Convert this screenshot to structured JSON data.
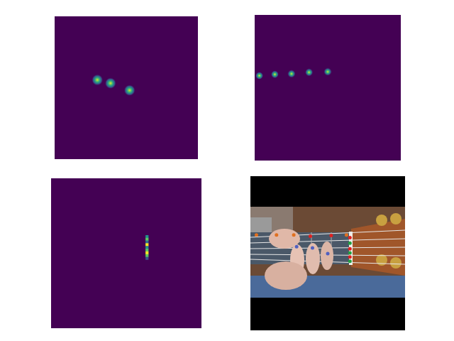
{
  "chart_data": [
    {
      "type": "scatter",
      "x": [
        29.8,
        39.0,
        52.3
      ],
      "values": [
        44.5,
        46.8,
        51.8
      ],
      "marker": "blob",
      "xlim": [
        0,
        100
      ],
      "ylim": [
        100,
        0
      ],
      "grid": false,
      "tick_labels": false
    },
    {
      "type": "scatter",
      "x": [
        3.2,
        13.8,
        25.2,
        37.2,
        50.0
      ],
      "values": [
        41.7,
        40.8,
        40.4,
        39.4,
        39.0
      ],
      "marker": "small_blob",
      "xlim": [
        0,
        100
      ],
      "ylim": [
        100,
        0
      ],
      "grid": false,
      "tick_labels": false
    },
    {
      "type": "scatter",
      "x": [
        63.8,
        63.8,
        63.8,
        63.8,
        63.8,
        63.8,
        63.8,
        63.8,
        63.8
      ],
      "values": [
        38.9,
        40.7,
        42.5,
        44.3,
        46.2,
        48.0,
        49.8,
        51.6,
        53.4
      ],
      "marker": "square",
      "colors": [
        "#21918c",
        "#5ec962",
        "#2c728e",
        "#fde725",
        "#21918c",
        "#5ec962",
        "#fde725",
        "#5ec962",
        "#3b528b"
      ],
      "xlim": [
        0,
        100
      ],
      "ylim": [
        100,
        0
      ],
      "grid": false,
      "tick_labels": false
    },
    {
      "type": "photo_keypoints",
      "x": [
        2.8,
        16.1,
        27.5,
        62.4,
        38.5,
        52.3,
        64.7,
        64.7,
        64.7,
        64.7,
        64.7,
        64.7,
        29.4,
        39.9,
        50.0
      ],
      "values": [
        37.8,
        37.8,
        37.8,
        37.8,
        38.7,
        38.2,
        39.6,
        47.0,
        52.5,
        43.3,
        49.8,
        55.3,
        45.6,
        46.5,
        50.2
      ],
      "marker": "circle",
      "colors": [
        "#e07020",
        "#e07020",
        "#e07020",
        "#e07020",
        "#e02020",
        "#e02020",
        "#e02020",
        "#e02020",
        "#e02020",
        "#20a040",
        "#20a040",
        "#20a040",
        "#5060c0",
        "#5060c0",
        "#5060c0"
      ],
      "xlim": [
        0,
        100
      ],
      "ylim": [
        100,
        0
      ],
      "grid": false,
      "tick_labels": false
    }
  ]
}
